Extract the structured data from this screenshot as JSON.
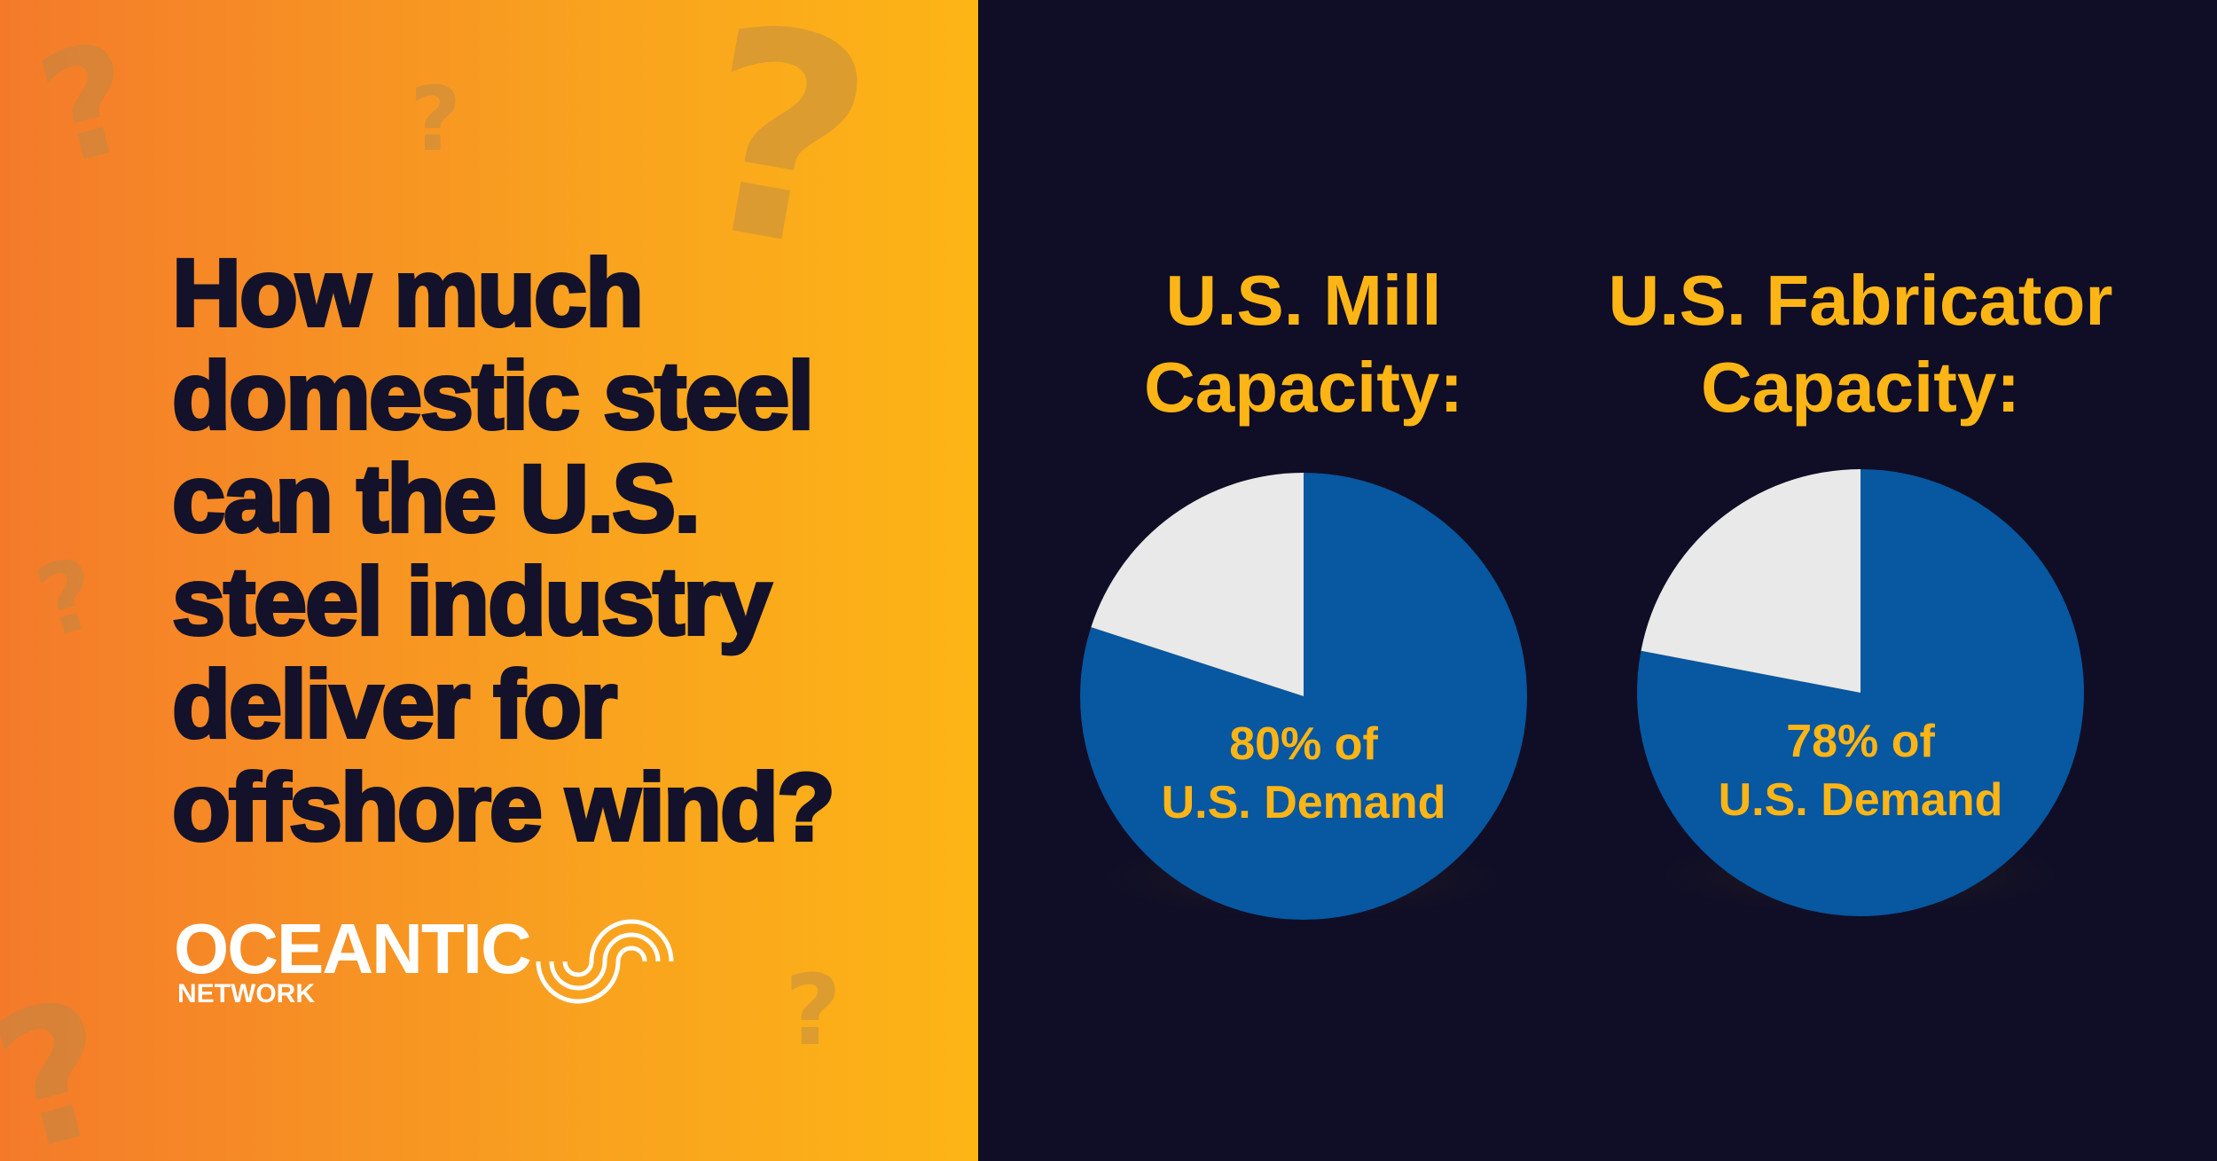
{
  "colors": {
    "background": "#100e26",
    "orange_start": "#f47a2a",
    "orange_end": "#fdb515",
    "blue": "#0757a1",
    "gray": "#e8e9e8",
    "yellow": "#fdb515",
    "title": "#14122a"
  },
  "headline": [
    "How much",
    "domestic steel",
    "can the U.S.",
    "steel industry",
    "deliver for",
    "offshore wind?"
  ],
  "logo": {
    "name": "OCEANTIC",
    "sub": "NETWORK"
  },
  "chart_data": [
    {
      "type": "pie",
      "title": "U.S. Mill Capacity:",
      "title_lines": [
        "U.S. Mill",
        "Capacity:"
      ],
      "slices": [
        {
          "label": "U.S. Demand met",
          "value": 80
        },
        {
          "label": "Remaining",
          "value": 20
        }
      ],
      "label_lines": [
        "80% of",
        "U.S. Demand"
      ]
    },
    {
      "type": "pie",
      "title": "U.S. Fabricator Capacity:",
      "title_lines": [
        "U.S. Fabricator",
        "Capacity:"
      ],
      "slices": [
        {
          "label": "U.S. Demand met",
          "value": 78
        },
        {
          "label": "Remaining",
          "value": 22
        }
      ],
      "label_lines": [
        "78% of",
        "U.S. Demand"
      ]
    }
  ]
}
